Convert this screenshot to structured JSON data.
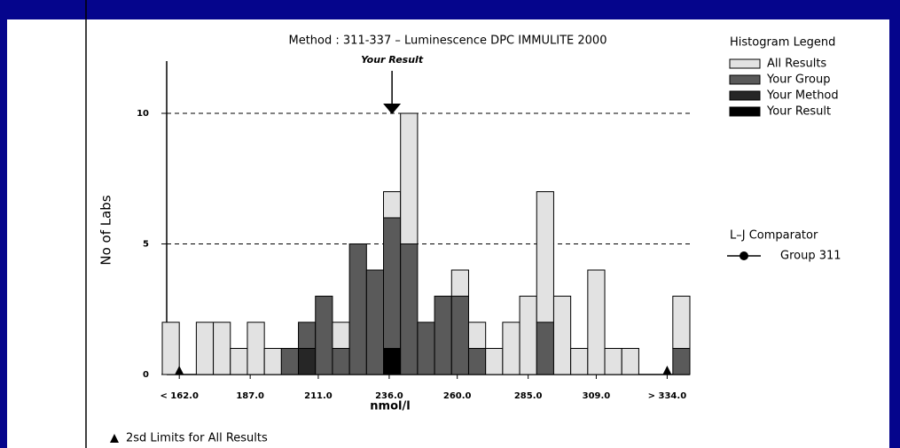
{
  "chart_data": {
    "type": "histogram",
    "title": "Method : 311-337    – Luminescence   DPC IMMULITE 2000",
    "annotation": "Your Result",
    "result_marker": 237,
    "y_label": "No of Labs",
    "x_label": "nmol/l",
    "legend_title": "Histogram Legend",
    "comparator_title": "L–J Comparator",
    "comparator_entry": "Group 311",
    "footnote": "2sd Limits for All Results",
    "sd_limits": [
      162,
      334
    ],
    "bins": [
      156,
      162,
      168,
      174,
      180,
      186,
      192,
      198,
      204,
      210,
      216,
      222,
      228,
      234,
      240,
      246,
      252,
      258,
      264,
      270,
      276,
      282,
      288,
      294,
      300,
      306,
      312,
      318,
      324,
      330,
      336,
      342
    ],
    "series": [
      {
        "name": "All Results",
        "color": "#e2e2e2",
        "values": [
          2,
          0,
          2,
          2,
          1,
          2,
          1,
          0,
          0,
          0,
          1,
          0,
          0,
          1,
          5,
          0,
          0,
          1,
          1,
          1,
          2,
          3,
          5,
          3,
          1,
          4,
          1,
          1,
          0,
          0,
          2
        ]
      },
      {
        "name": "Your Group",
        "color": "#5a5a5a",
        "values": [
          0,
          0,
          0,
          0,
          0,
          0,
          0,
          1,
          1,
          3,
          1,
          5,
          4,
          5,
          5,
          2,
          3,
          3,
          1,
          0,
          0,
          0,
          2,
          0,
          0,
          0,
          0,
          0,
          0,
          0,
          1
        ]
      },
      {
        "name": "Your Method",
        "color": "#262626",
        "values": [
          0,
          0,
          0,
          0,
          0,
          0,
          0,
          0,
          1,
          0,
          0,
          0,
          0,
          0,
          0,
          0,
          0,
          0,
          0,
          0,
          0,
          0,
          0,
          0,
          0,
          0,
          0,
          0,
          0,
          0,
          0
        ]
      },
      {
        "name": "Your Result",
        "color": "#000000",
        "values": [
          0,
          0,
          0,
          0,
          0,
          0,
          0,
          0,
          0,
          0,
          0,
          0,
          0,
          1,
          0,
          0,
          0,
          0,
          0,
          0,
          0,
          0,
          0,
          0,
          0,
          0,
          0,
          0,
          0,
          0,
          0
        ]
      }
    ],
    "xlim": [
      156,
      342
    ],
    "xticks": [
      {
        "value": 162,
        "label": "< 162.0"
      },
      {
        "value": 187,
        "label": "187.0"
      },
      {
        "value": 211,
        "label": "211.0"
      },
      {
        "value": 236,
        "label": "236.0"
      },
      {
        "value": 260,
        "label": "260.0"
      },
      {
        "value": 285,
        "label": "285.0"
      },
      {
        "value": 309,
        "label": "309.0"
      },
      {
        "value": 334,
        "label": "> 334.0"
      }
    ],
    "ylim": [
      0,
      12
    ],
    "yticks": [
      0,
      5,
      10
    ],
    "grid": true
  }
}
